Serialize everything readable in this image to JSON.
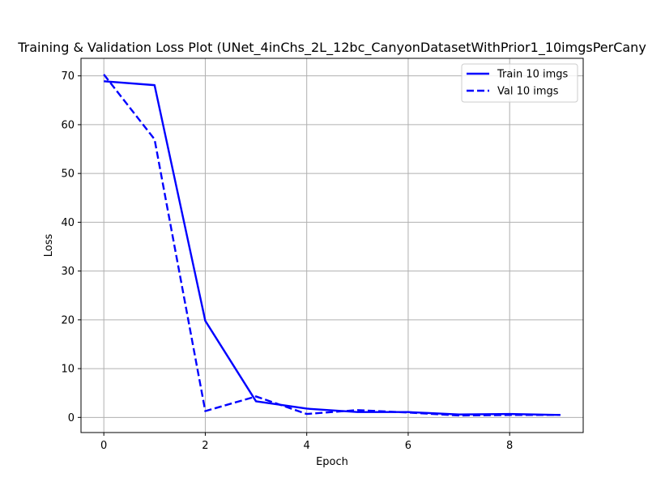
{
  "chart_data": {
    "type": "line",
    "title": "Training & Validation Loss Plot (UNet_4inChs_2L_12bc_CanyonDatasetWithPrior1_10imgsPerCany",
    "xlabel": "Epoch",
    "ylabel": "Loss",
    "xlim": [
      -0.45,
      9.45
    ],
    "ylim": [
      -3.1,
      73.6
    ],
    "x_ticks": [
      0,
      2,
      4,
      6,
      8
    ],
    "y_ticks": [
      0,
      10,
      20,
      30,
      40,
      50,
      60,
      70
    ],
    "grid": true,
    "legend_position": "top-right",
    "series": [
      {
        "name": "Train 10 imgs",
        "color": "#0000ff",
        "linestyle": "solid",
        "x": [
          0,
          1,
          2,
          3,
          4,
          5,
          6,
          7,
          8,
          9
        ],
        "y": [
          68.9,
          68.1,
          19.8,
          3.3,
          1.8,
          1.1,
          1.1,
          0.6,
          0.7,
          0.5
        ]
      },
      {
        "name": "Val 10 imgs",
        "color": "#0000ff",
        "linestyle": "dashed",
        "x": [
          0,
          1,
          2,
          3,
          4,
          5,
          6,
          7,
          8,
          9
        ],
        "y": [
          70.3,
          57.0,
          1.3,
          4.3,
          0.7,
          1.5,
          1.0,
          0.4,
          0.5,
          0.5
        ]
      }
    ]
  }
}
